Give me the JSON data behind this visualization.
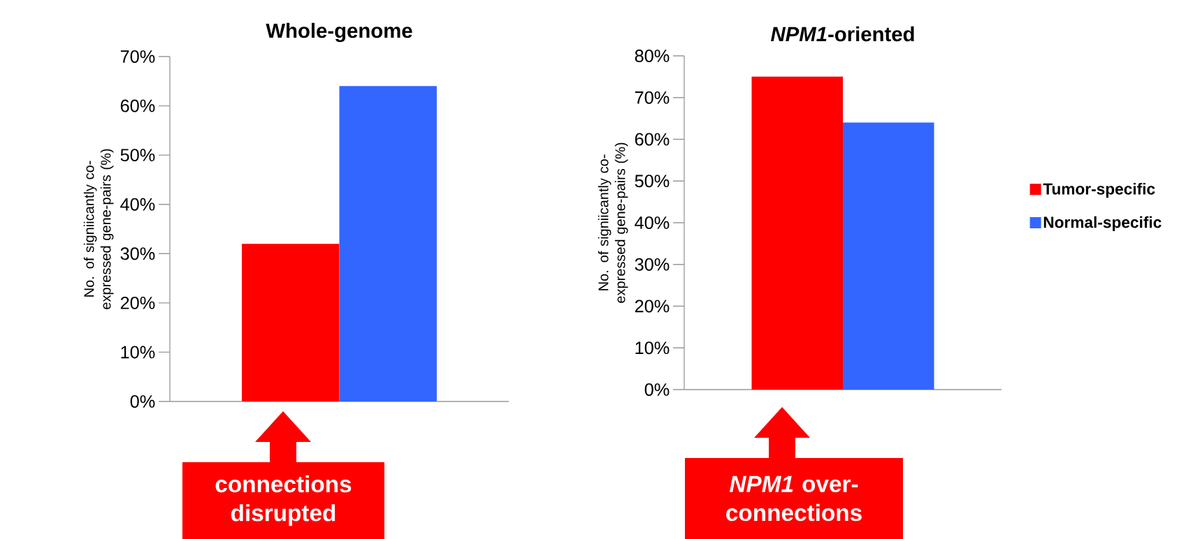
{
  "chart_data": [
    {
      "type": "bar",
      "title": "Whole-genome",
      "ylabel": "No. of signiicantly co-expressed gene-pairs (%)",
      "categories": [
        null
      ],
      "series": [
        {
          "color": "#ff0000",
          "values": [
            32
          ]
        },
        {
          "color": "#3366ff",
          "values": [
            64
          ]
        }
      ],
      "ylim": [
        0,
        70
      ],
      "yticks": [
        {
          "value": 0,
          "label": "0%"
        },
        {
          "value": 10,
          "label": "10%"
        },
        {
          "value": 20,
          "label": "20%"
        },
        {
          "value": 30,
          "label": "30%"
        },
        {
          "value": 40,
          "label": "40%"
        },
        {
          "value": 50,
          "label": "50%"
        },
        {
          "value": 60,
          "label": "60%"
        },
        {
          "value": 70,
          "label": "70%"
        }
      ],
      "annotations": [
        "connections disrupted"
      ]
    },
    {
      "type": "bar",
      "title": "*NPM1*-oriented",
      "ylabel": "No. of signiicantly co-expressed gene-pairs (%)",
      "categories": [
        null
      ],
      "series": [
        {
          "name": "Tumor-specific",
          "color": "#ff0000",
          "values": [
            75
          ]
        },
        {
          "name": "Normal-specific",
          "color": "#3366ff",
          "values": [
            64
          ]
        }
      ],
      "ylim": [
        0,
        80
      ],
      "yticks": [
        {
          "value": 0,
          "label": "0%"
        },
        {
          "value": 10,
          "label": "10%"
        },
        {
          "value": 20,
          "label": "20%"
        },
        {
          "value": 30,
          "label": "30%"
        },
        {
          "value": 40,
          "label": "40%"
        },
        {
          "value": 50,
          "label": "50%"
        },
        {
          "value": 60,
          "label": "60%"
        },
        {
          "value": 70,
          "label": "70%"
        },
        {
          "value": 80,
          "label": "80%"
        }
      ],
      "legend": "right",
      "annotations": [
        "*NPM1* over-connections"
      ]
    }
  ]
}
